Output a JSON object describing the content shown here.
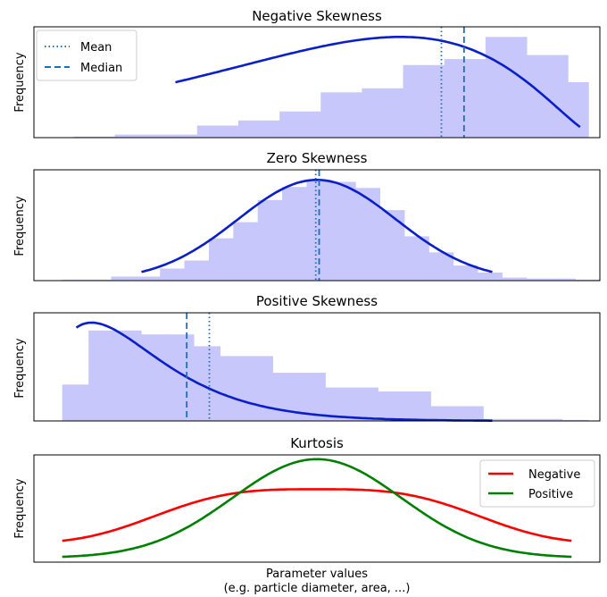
{
  "chart_data": [
    {
      "type": "histogram",
      "title": "Negative Skewness",
      "ylabel": "Frequency",
      "xlim": [
        0,
        100
      ],
      "ylim": [
        0,
        1.1
      ],
      "bars": [
        0.01,
        0.01,
        0.03,
        0.03,
        0.03,
        0.03,
        0.12,
        0.12,
        0.17,
        0.17,
        0.26,
        0.26,
        0.45,
        0.45,
        0.49,
        0.49,
        0.72,
        0.72,
        0.78,
        0.78,
        1.0,
        1.0,
        0.82,
        0.82,
        0.55
      ],
      "bar_range": [
        7,
        98
      ],
      "curve": {
        "x_start": 25,
        "x_end": 96.5,
        "shape": "left-skewed, peak near 93"
      },
      "mean": 72,
      "median": 76,
      "legend": {
        "position": "top-left",
        "entries": [
          {
            "label": "Mean",
            "style": "dotted",
            "color": "#1f77b4"
          },
          {
            "label": "Median",
            "style": "dashed",
            "color": "#1f77b4"
          }
        ]
      }
    },
    {
      "type": "histogram",
      "title": "Zero Skewness",
      "ylabel": "Frequency",
      "xlim": [
        0,
        100
      ],
      "ylim": [
        0,
        1.1
      ],
      "bars": [
        0.01,
        0.01,
        0.04,
        0.04,
        0.12,
        0.2,
        0.42,
        0.58,
        0.8,
        0.93,
        1.0,
        0.98,
        0.92,
        0.7,
        0.44,
        0.28,
        0.15,
        0.08,
        0.03,
        0.02,
        0.02,
        0.01
      ],
      "bar_range": [
        5,
        100
      ],
      "curve": {
        "x_start": 19,
        "x_end": 81,
        "shape": "symmetric, peak near 50"
      },
      "mean": 49.8,
      "median": 50.4
    },
    {
      "type": "histogram",
      "title": "Positive Skewness",
      "ylabel": "Frequency",
      "xlim": [
        0,
        100
      ],
      "ylim": [
        0,
        1.1
      ],
      "bars": [
        0.37,
        0.92,
        0.92,
        0.88,
        0.88,
        0.76,
        0.66,
        0.66,
        0.49,
        0.49,
        0.34,
        0.34,
        0.3,
        0.3,
        0.15,
        0.15,
        0.02,
        0.02,
        0.02,
        0.01
      ],
      "bar_range": [
        5,
        98
      ],
      "curve": {
        "x_start": 7.5,
        "x_end": 81,
        "shape": "right-skewed, peak near 12"
      },
      "mean": 31,
      "median": 27
    },
    {
      "type": "line",
      "title": "Kurtosis",
      "ylabel": "Frequency",
      "xlabel": "Parameter values",
      "xlabel2": "(e.g. particle diameter, area, ...)",
      "xlim": [
        0,
        100
      ],
      "ylim": [
        0,
        1.0
      ],
      "legend": {
        "position": "top-right"
      },
      "series": [
        {
          "name": "Negative",
          "color": "#ff0000",
          "shape": "platykurtic",
          "peak": 0.68,
          "base": 0.17
        },
        {
          "name": "Positive",
          "color": "#008000",
          "shape": "leptokurtic",
          "peak": 0.96,
          "base": 0.04
        }
      ]
    }
  ],
  "colors": {
    "bar_fill": "#c7c7fb",
    "curve": "#0a1fc9",
    "mean_median": "#1f6fb4",
    "negative": "#ff0000",
    "positive": "#008000"
  }
}
